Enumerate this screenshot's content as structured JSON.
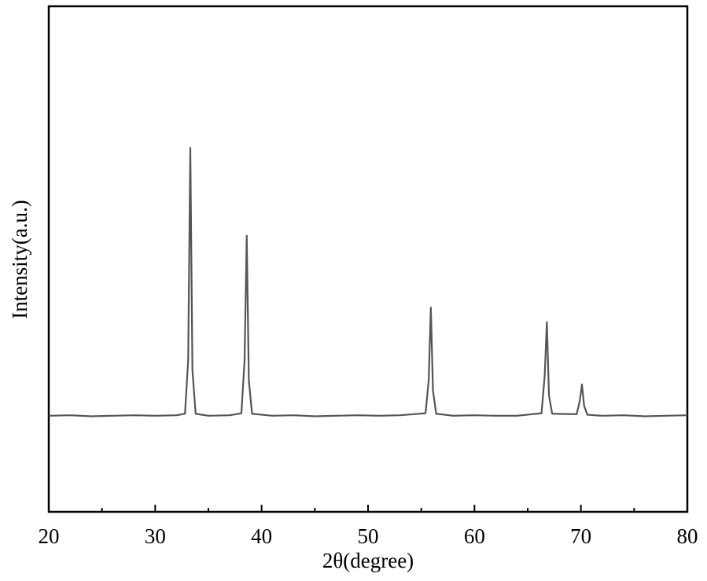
{
  "chart_data": {
    "type": "line",
    "x_label": "2θ(degree)",
    "y_label": "Intensity(a.u.)",
    "xlim": [
      20,
      80
    ],
    "xticks": [
      20,
      30,
      40,
      50,
      60,
      70,
      80
    ],
    "xminorticks": [
      25,
      35,
      45,
      55,
      65,
      75
    ],
    "ylim": [
      0,
      100
    ],
    "grid": false,
    "series": [
      {
        "color": "#555555",
        "x": [
          20,
          22,
          24,
          26,
          28,
          30,
          32,
          32.8,
          33.1,
          33.3,
          33.5,
          33.8,
          35,
          37,
          38.1,
          38.4,
          38.6,
          38.8,
          39.1,
          41,
          43,
          45,
          47,
          49,
          51,
          53,
          55.4,
          55.7,
          55.9,
          56.1,
          56.4,
          58,
          60,
          62,
          64,
          66.3,
          66.6,
          66.8,
          67.0,
          67.3,
          69.6,
          69.9,
          70.1,
          70.3,
          70.6,
          72,
          74,
          76,
          78,
          80
        ],
        "values": [
          19,
          19.1,
          18.9,
          19,
          19.1,
          19,
          19.1,
          19.4,
          30,
          72,
          28,
          19.4,
          19,
          19.1,
          19.5,
          30,
          54.6,
          26,
          19.4,
          19,
          19.1,
          18.9,
          19,
          19.1,
          19,
          19.1,
          19.5,
          26,
          40.4,
          24,
          19.4,
          19,
          19.1,
          19,
          19,
          19.5,
          27,
          37.5,
          23,
          19.4,
          19.3,
          22,
          25.2,
          21,
          19.2,
          19,
          19.1,
          18.9,
          19,
          19.1
        ]
      }
    ]
  }
}
